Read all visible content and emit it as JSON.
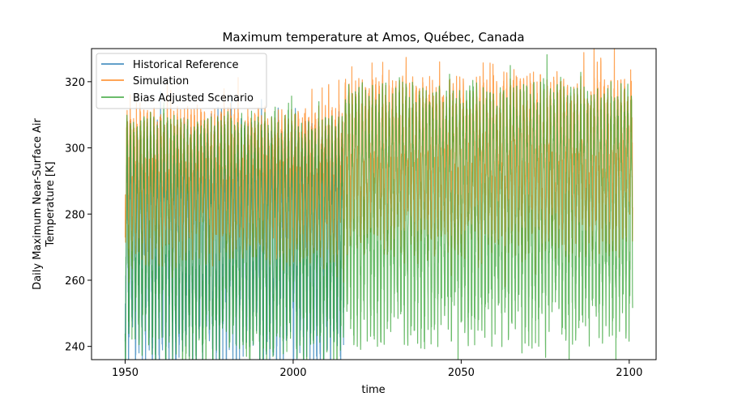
{
  "chart_data": {
    "type": "line",
    "title": "Maximum temperature at Amos, Québec, Canada",
    "xlabel": "time",
    "ylabel_lines": [
      "Daily Maximum Near-Surface Air",
      "Temperature [K]"
    ],
    "xlim": [
      1940,
      2108
    ],
    "ylim": [
      236,
      330
    ],
    "xticks": [
      1950,
      2000,
      2050,
      2100
    ],
    "yticks": [
      240,
      260,
      280,
      300,
      320
    ],
    "grid": false,
    "legend_position": "top-left",
    "series": [
      {
        "name": "Historical Reference",
        "color": "#1f77b4",
        "opacity": 0.7,
        "x_range": [
          1950,
          2015
        ],
        "segments": [
          {
            "x_start": 1950,
            "x_end": 2015,
            "summer_max": 303,
            "winter_min": 246
          }
        ]
      },
      {
        "name": "Simulation",
        "color": "#ff7f0e",
        "opacity": 0.7,
        "x_range": [
          1950,
          2101
        ],
        "segments": [
          {
            "x_start": 1950,
            "x_end": 2015,
            "summer_max": 307,
            "winter_min": 279
          },
          {
            "x_start": 2015,
            "x_end": 2101,
            "summer_max": 316,
            "winter_min": 281
          }
        ]
      },
      {
        "name": "Bias Adjusted Scenario",
        "color": "#2ca02c",
        "opacity": 0.7,
        "x_range": [
          1950,
          2101
        ],
        "segments": [
          {
            "x_start": 1950,
            "x_end": 2015,
            "summer_max": 305,
            "winter_min": 248
          },
          {
            "x_start": 2015,
            "x_end": 2101,
            "summer_max": 314,
            "winter_min": 254
          }
        ]
      }
    ]
  }
}
